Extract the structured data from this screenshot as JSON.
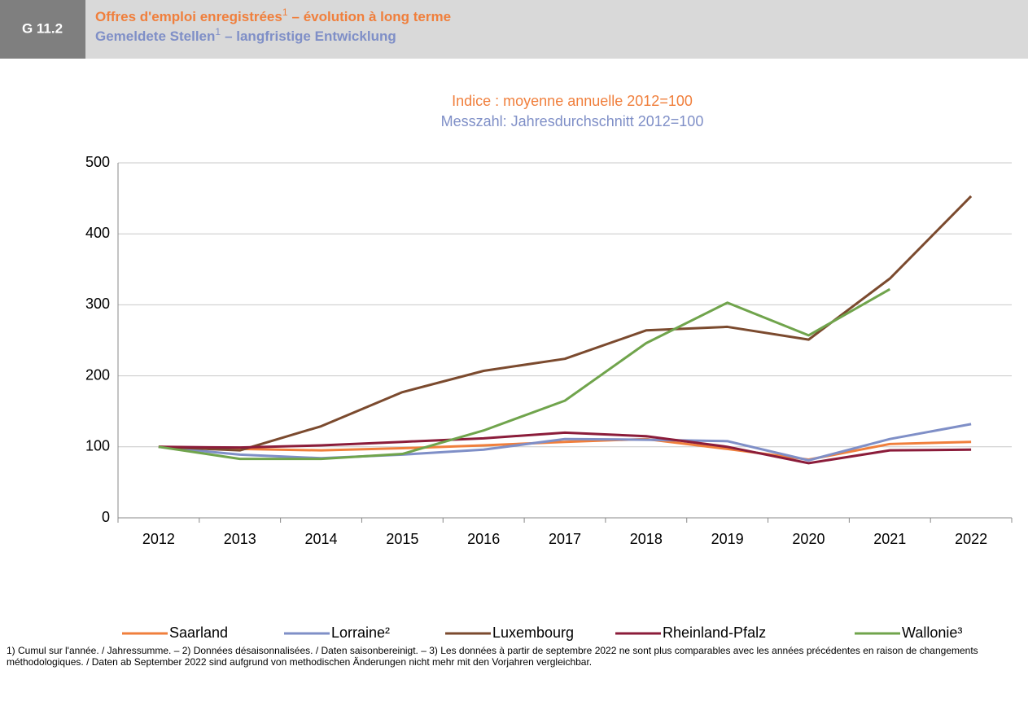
{
  "header": {
    "code": "G 11.2",
    "title_fr": {
      "text": "Offres d'emploi enregistrées",
      "note": "1",
      "rest": "– évolution à long terme"
    },
    "title_de": {
      "text": "Gemeldete Stellen",
      "note": "1",
      "rest": "– langfristige Entwicklung"
    }
  },
  "chart_data": {
    "type": "line",
    "subtitle": [
      "Indice : moyenne annuelle 2012=100",
      "Messzahl: Jahresdurchschnitt 2012=100"
    ],
    "categories": [
      "2012",
      "2013",
      "2014",
      "2015",
      "2016",
      "2017",
      "2018",
      "2019",
      "2020",
      "2021",
      "2022"
    ],
    "series": [
      {
        "name": "Saarland",
        "color": "#f07f3c",
        "values": [
          100,
          97,
          95,
          98,
          102,
          107,
          111,
          97,
          82,
          104,
          107
        ]
      },
      {
        "name": "Lorraine²",
        "color": "#7f8fc7",
        "values": [
          100,
          89,
          84,
          89,
          96,
          111,
          110,
          108,
          81,
          111,
          132
        ]
      },
      {
        "name": "Luxembourg",
        "color": "#7b4a2e",
        "values": [
          100,
          95,
          129,
          177,
          207,
          224,
          264,
          269,
          251,
          337,
          453
        ]
      },
      {
        "name": "Rheinland-Pfalz",
        "color": "#8b1c3a",
        "values": [
          100,
          99,
          102,
          107,
          112,
          120,
          115,
          100,
          77,
          95,
          96
        ]
      },
      {
        "name": "Wallonie³",
        "color": "#70a44c",
        "values": [
          100,
          83,
          83,
          90,
          123,
          165,
          246,
          303,
          257,
          322,
          null
        ]
      }
    ],
    "ylim": [
      0,
      500
    ],
    "yticks": [
      0,
      100,
      200,
      300,
      400,
      500
    ],
    "grid": true,
    "legend": "bottom"
  },
  "footnote": "1) Cumul sur l'année. / Jahressumme. – 2) Données désaisonnalisées. / Daten saisonbereinigt. – 3) Les données à partir de septembre 2022 ne sont plus comparables avec les années précédentes en raison de changements méthodologiques. / Daten ab September 2022 sind aufgrund von methodischen Änderungen nicht mehr mit den Vorjahren vergleichbar."
}
